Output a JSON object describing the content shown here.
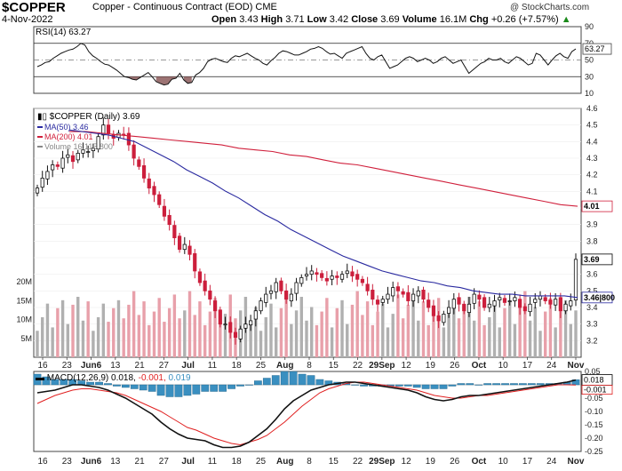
{
  "header": {
    "symbol": "$COPPER",
    "description": "Copper - Continuous Contract (EOD) CME",
    "watermark": "@ StockCharts.com",
    "date": "4-Nov-2022",
    "open_label": "Open",
    "open": "3.43",
    "high_label": "High",
    "high": "3.71",
    "low_label": "Low",
    "low": "3.42",
    "close_label": "Close",
    "close": "3.69",
    "volume_label": "Volume",
    "volume": "16.1M",
    "chg_label": "Chg",
    "chg": "+0.26 (+7.57%)",
    "chg_arrow": "▲"
  },
  "colors": {
    "up": "#111111",
    "down": "#cc1f3c",
    "ma50": "#2a2aa0",
    "ma200": "#d0203c",
    "vol_up": "#b0b0b0",
    "vol_down": "#e8a0aa",
    "rsi": "#111111",
    "rsi_fill": "#8b5a5a",
    "macd": "#111111",
    "signal": "#e02020",
    "hist": "#3a8fc0"
  },
  "chart_data": [
    {
      "type": "line",
      "panel": "rsi",
      "title": "RSI(14) 63.27",
      "ylim": [
        10,
        90
      ],
      "ticks": [
        90,
        70,
        50,
        30,
        10
      ],
      "reference_lines": [
        70,
        50,
        30
      ],
      "last_value_label": "63.27",
      "values": [
        42,
        44,
        47,
        48,
        52,
        55,
        58,
        60,
        62,
        63,
        66,
        70,
        68,
        60,
        55,
        52,
        48,
        45,
        44,
        41,
        38,
        34,
        30,
        29,
        27,
        26,
        29,
        32,
        35,
        30,
        24,
        22,
        20,
        21,
        27,
        28,
        34,
        26,
        22,
        23,
        32,
        35,
        40,
        48,
        51,
        52,
        50,
        48,
        47,
        52,
        55,
        54,
        56,
        58,
        55,
        52,
        50,
        46,
        44,
        49,
        53,
        58,
        61,
        60,
        58,
        56,
        56,
        58,
        60,
        63,
        64,
        66,
        64,
        60,
        57,
        58,
        55,
        52,
        58,
        60,
        62,
        64,
        66,
        58,
        52,
        50,
        54,
        56,
        48,
        40,
        42,
        44,
        48,
        52,
        54,
        52,
        48,
        50,
        52,
        50,
        46,
        48,
        52,
        54,
        50,
        46,
        48,
        50,
        42,
        34,
        38,
        42,
        46,
        48,
        52,
        50,
        50,
        52,
        48,
        46,
        50,
        54,
        52,
        48,
        44,
        46,
        58,
        56,
        50,
        44,
        50,
        55,
        58,
        54,
        52,
        60,
        63.27
      ]
    },
    {
      "type": "candlestick",
      "panel": "price",
      "title": "$COPPER (Daily) 3.69",
      "ylim": [
        3.1,
        4.6
      ],
      "ticks": [
        4.6,
        4.5,
        4.4,
        4.3,
        4.2,
        4.1,
        4.0,
        3.9,
        3.8,
        3.7,
        3.6,
        3.5,
        3.4,
        3.3,
        3.2
      ],
      "x_ticks": [
        "16",
        "23",
        "Jun6",
        "13",
        "21",
        "27",
        "Jul",
        "11",
        "18",
        "25",
        "Aug",
        "8",
        "15",
        "22",
        "29Sep",
        "12",
        "19",
        "26",
        "Oct",
        "10",
        "17",
        "24",
        "Nov"
      ],
      "legend": [
        {
          "name": "MA(50) 3.46",
          "color": "#2a2aa0"
        },
        {
          "name": "MA(200) 4.01",
          "color": "#d0203c"
        },
        {
          "name": "Volume 16,115,800",
          "color": "#888888"
        }
      ],
      "value_labels": {
        "close": "3.69",
        "ma50": "3.46",
        "ma200": "4.01",
        "volume": "16115800"
      },
      "closes": [
        4.12,
        4.18,
        4.22,
        4.26,
        4.25,
        4.3,
        4.32,
        4.28,
        4.33,
        4.35,
        4.34,
        4.36,
        4.43,
        4.5,
        4.45,
        4.42,
        4.45,
        4.44,
        4.38,
        4.3,
        4.25,
        4.18,
        4.12,
        4.08,
        4.02,
        3.95,
        3.9,
        3.82,
        3.75,
        3.78,
        3.72,
        3.62,
        3.55,
        3.5,
        3.45,
        3.38,
        3.3,
        3.3,
        3.25,
        3.22,
        3.27,
        3.3,
        3.32,
        3.38,
        3.44,
        3.48,
        3.5,
        3.55,
        3.5,
        3.45,
        3.48,
        3.55,
        3.58,
        3.6,
        3.62,
        3.6,
        3.58,
        3.56,
        3.59,
        3.58,
        3.6,
        3.62,
        3.59,
        3.57,
        3.55,
        3.5,
        3.45,
        3.42,
        3.45,
        3.48,
        3.52,
        3.5,
        3.48,
        3.44,
        3.48,
        3.5,
        3.45,
        3.4,
        3.35,
        3.32,
        3.36,
        3.4,
        3.45,
        3.42,
        3.38,
        3.42,
        3.48,
        3.45,
        3.4,
        3.42,
        3.44,
        3.46,
        3.43,
        3.44,
        3.46,
        3.4,
        3.38,
        3.42,
        3.45,
        3.47,
        3.44,
        3.42,
        3.45,
        3.38,
        3.42,
        3.44,
        3.69
      ],
      "ma50": [
        4.47,
        4.46,
        4.45,
        4.44,
        4.42,
        4.4,
        4.36,
        4.32,
        4.28,
        4.23,
        4.19,
        4.15,
        4.1,
        4.06,
        4.01,
        3.96,
        3.92,
        3.87,
        3.83,
        3.79,
        3.75,
        3.71,
        3.68,
        3.65,
        3.62,
        3.6,
        3.58,
        3.56,
        3.55,
        3.53,
        3.52,
        3.5,
        3.49,
        3.48,
        3.48,
        3.47,
        3.47,
        3.47,
        3.47,
        3.46
      ],
      "ma200": [
        4.46,
        4.46,
        4.45,
        4.44,
        4.43,
        4.42,
        4.41,
        4.4,
        4.39,
        4.38,
        4.36,
        4.35,
        4.34,
        4.32,
        4.31,
        4.29,
        4.27,
        4.26,
        4.24,
        4.22,
        4.2,
        4.18,
        4.16,
        4.14,
        4.12,
        4.1,
        4.08,
        4.06,
        4.04,
        4.02,
        4.01
      ],
      "volume_ticks": [
        "20M",
        "15M",
        "10M",
        "5M"
      ]
    },
    {
      "type": "line",
      "panel": "macd",
      "title": "MACD(12,26,9) 0.018, -0.001, 0.019",
      "ylim": [
        -0.25,
        0.05
      ],
      "ticks": [
        0.05,
        0.0,
        -0.05,
        -0.1,
        -0.15,
        -0.2,
        -0.25
      ],
      "series": [
        {
          "name": "MACD(12,26,9) 0.018",
          "values": [
            -0.03,
            -0.025,
            -0.02,
            -0.01,
            0.0,
            0.0,
            -0.005,
            -0.01,
            -0.02,
            -0.035,
            -0.05,
            -0.07,
            -0.09,
            -0.11,
            -0.14,
            -0.165,
            -0.185,
            -0.2,
            -0.205,
            -0.21,
            -0.225,
            -0.235,
            -0.235,
            -0.23,
            -0.215,
            -0.19,
            -0.165,
            -0.13,
            -0.09,
            -0.06,
            -0.04,
            -0.02,
            -0.01,
            0.0,
            0.005,
            0.01,
            0.01,
            0.005,
            0.0,
            -0.005,
            -0.01,
            -0.015,
            -0.02,
            -0.03,
            -0.045,
            -0.055,
            -0.06,
            -0.055,
            -0.045,
            -0.04,
            -0.04,
            -0.035,
            -0.03,
            -0.025,
            -0.02,
            -0.015,
            -0.01,
            -0.005,
            0.0,
            0.005,
            0.01,
            0.018
          ]
        },
        {
          "name": "-0.001",
          "values": [
            -0.07,
            -0.055,
            -0.04,
            -0.03,
            -0.02,
            -0.015,
            -0.015,
            -0.02,
            -0.025,
            -0.03,
            -0.04,
            -0.055,
            -0.07,
            -0.085,
            -0.1,
            -0.12,
            -0.14,
            -0.16,
            -0.17,
            -0.185,
            -0.2,
            -0.21,
            -0.22,
            -0.225,
            -0.215,
            -0.205,
            -0.19,
            -0.165,
            -0.14,
            -0.11,
            -0.08,
            -0.055,
            -0.03,
            -0.015,
            -0.005,
            0.005,
            0.01,
            0.01,
            0.005,
            0.0,
            -0.005,
            -0.01,
            -0.015,
            -0.02,
            -0.03,
            -0.04,
            -0.045,
            -0.05,
            -0.05,
            -0.045,
            -0.04,
            -0.04,
            -0.035,
            -0.03,
            -0.025,
            -0.02,
            -0.015,
            -0.01,
            -0.005,
            0.0,
            0.0,
            -0.001
          ]
        },
        {
          "name": "0.019",
          "values": [
            0.04,
            0.03,
            0.02,
            0.02,
            0.02,
            0.015,
            0.01,
            0.01,
            0.005,
            -0.005,
            -0.01,
            -0.015,
            -0.02,
            -0.025,
            -0.04,
            -0.045,
            -0.045,
            -0.04,
            -0.035,
            -0.025,
            -0.025,
            -0.025,
            -0.015,
            -0.005,
            0.0,
            0.015,
            0.025,
            0.035,
            0.05,
            0.05,
            0.04,
            0.035,
            0.02,
            0.015,
            0.01,
            0.005,
            0.0,
            -0.005,
            -0.005,
            -0.005,
            -0.005,
            -0.005,
            -0.005,
            -0.01,
            -0.015,
            -0.015,
            -0.015,
            -0.005,
            0.005,
            0.005,
            0.0,
            0.005,
            0.005,
            0.005,
            0.005,
            0.005,
            0.005,
            0.005,
            0.005,
            0.005,
            0.01,
            0.019
          ]
        }
      ],
      "last_value_labels": [
        "0.018",
        "-0.001"
      ],
      "x_ticks": [
        "16",
        "23",
        "Jun6",
        "13",
        "21",
        "27",
        "Jul",
        "11",
        "18",
        "25",
        "Aug",
        "8",
        "15",
        "22",
        "29Sep",
        "12",
        "19",
        "26",
        "Oct",
        "10",
        "17",
        "24",
        "Nov"
      ]
    }
  ]
}
